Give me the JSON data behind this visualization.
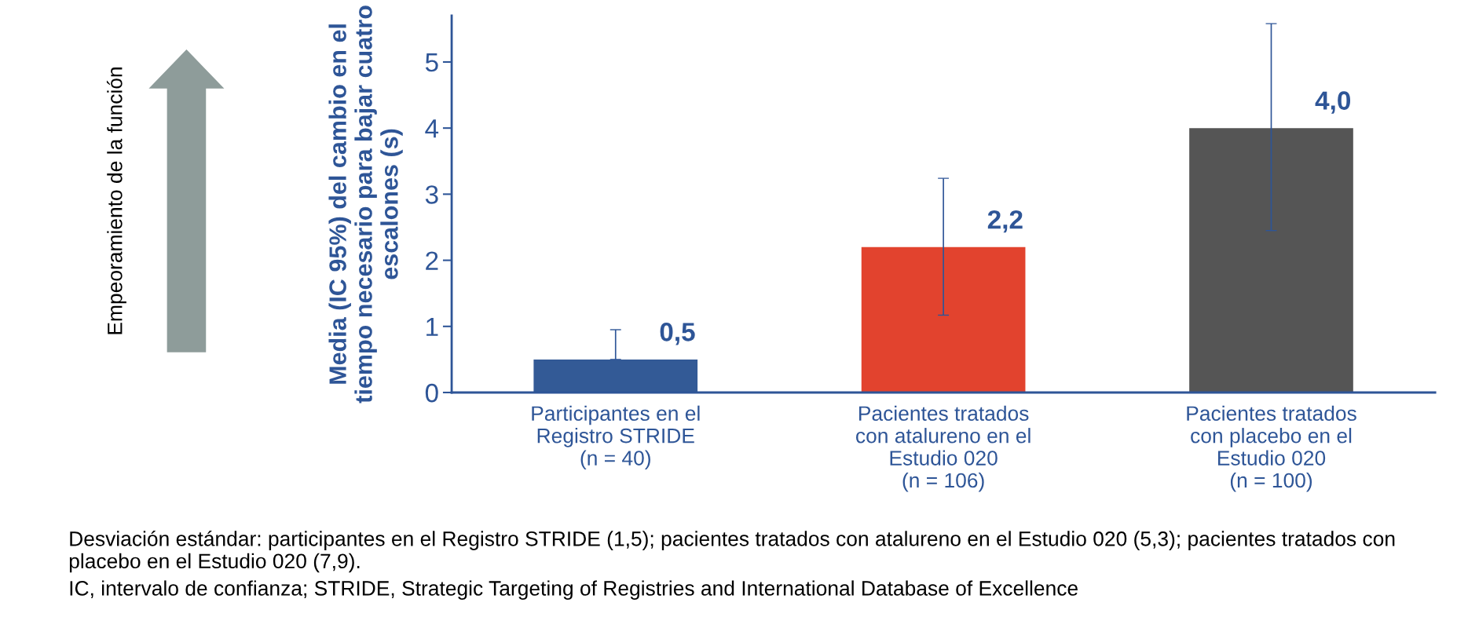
{
  "chart_data": {
    "type": "bar",
    "ylabel": "Media (IC 95%) del cambio en el tiempo necesario para bajar cuatro escalones (s)",
    "categories": [
      "Participantes en el\nRegistro STRIDE\n(n = 40)",
      "Pacientes tratados\ncon atalureno en el\nEstudio 020\n(n = 106)",
      "Pacientes tratados\ncon placebo en el\nEstudio 020\n(n = 100)"
    ],
    "values": [
      0.5,
      2.2,
      4.0
    ],
    "colors": [
      "#335a96",
      "#e2432e",
      "#555555"
    ],
    "errors": [
      [
        0.5,
        0.95
      ],
      [
        1.17,
        3.24
      ],
      [
        2.45,
        5.58
      ]
    ],
    "value_labels": [
      "0,5",
      "2,2",
      "4,0"
    ],
    "ylim": [
      0,
      5.7
    ],
    "yticks": [
      0,
      1,
      2,
      3,
      4,
      5
    ],
    "grid": false,
    "annotations": [
      "Empeoramiento de la función",
      "Desviación estándar: participantes en el Registro STRIDE (1,5); pacientes tratados con atalureno en el Estudio 020 (5,3); pacientes tratados con placebo en el Estudio 020 (7,9).",
      "IC, intervalo de confianza; STRIDE, Strategic Targeting of Registries and International Database of Excellence"
    ]
  }
}
